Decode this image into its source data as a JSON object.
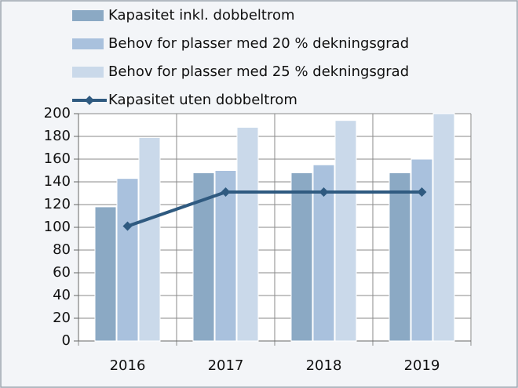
{
  "chart_data": {
    "type": "bar",
    "categories": [
      "2016",
      "2017",
      "2018",
      "2019"
    ],
    "series": [
      {
        "name": "Kapasitet inkl. dobbeltrom",
        "color": "#8ba9c4",
        "values": [
          118,
          148,
          148,
          148
        ]
      },
      {
        "name": "Behov for plasser med 20 % dekningsgrad",
        "color": "#a9c1dd",
        "values": [
          143,
          150,
          155,
          160
        ]
      },
      {
        "name": "Behov for plasser med 25 % dekningsgrad",
        "color": "#cad9ea",
        "values": [
          179,
          188,
          194,
          200
        ]
      },
      {
        "name": "Kapasitet uten dobbeltrom",
        "color": "#2f5a80",
        "type": "line",
        "values": [
          101,
          131,
          131,
          131
        ]
      }
    ],
    "ylim": [
      0,
      200
    ],
    "yticks": [
      0,
      20,
      40,
      60,
      80,
      100,
      120,
      140,
      160,
      180,
      200
    ],
    "grid": true,
    "legend": "top"
  }
}
